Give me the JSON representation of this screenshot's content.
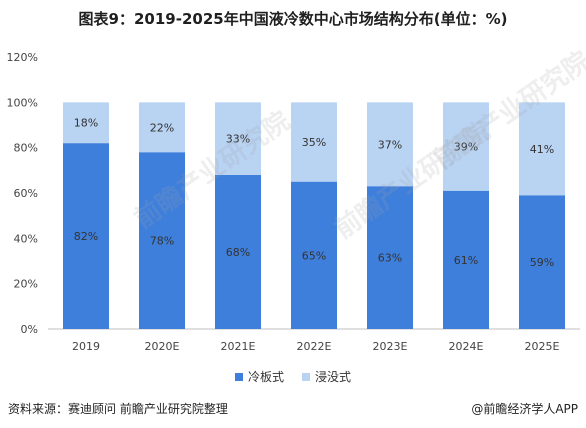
{
  "title": "图表9：2019-2025年中国液冷数中心市场结构分布(单位：%)",
  "chart_data": {
    "type": "bar",
    "stacked": true,
    "categories": [
      "2019",
      "2020E",
      "2021E",
      "2022E",
      "2023E",
      "2024E",
      "2025E"
    ],
    "series": [
      {
        "name": "冷板式",
        "color": "#3f7fdc",
        "values": [
          82,
          78,
          68,
          65,
          63,
          61,
          59
        ],
        "labels": [
          "82%",
          "78%",
          "68%",
          "65%",
          "63%",
          "61%",
          "59%"
        ]
      },
      {
        "name": "浸没式",
        "color": "#b9d3f3",
        "values": [
          18,
          22,
          33,
          35,
          37,
          39,
          41
        ],
        "labels": [
          "18%",
          "22%",
          "33%",
          "35%",
          "37%",
          "39%",
          "41%"
        ]
      }
    ],
    "ylim": [
      0,
      120
    ],
    "yticks": [
      0,
      20,
      40,
      60,
      80,
      100,
      120
    ],
    "ytick_labels": [
      "0%",
      "20%",
      "40%",
      "60%",
      "80%",
      "100%",
      "120%"
    ],
    "grid": false,
    "legend_position": "bottom"
  },
  "footer": {
    "source": "资料来源：赛迪顾问 前瞻产业研究院整理",
    "credit": "@前瞻经济学人APP"
  },
  "watermark_text": "前瞻产业研究院"
}
